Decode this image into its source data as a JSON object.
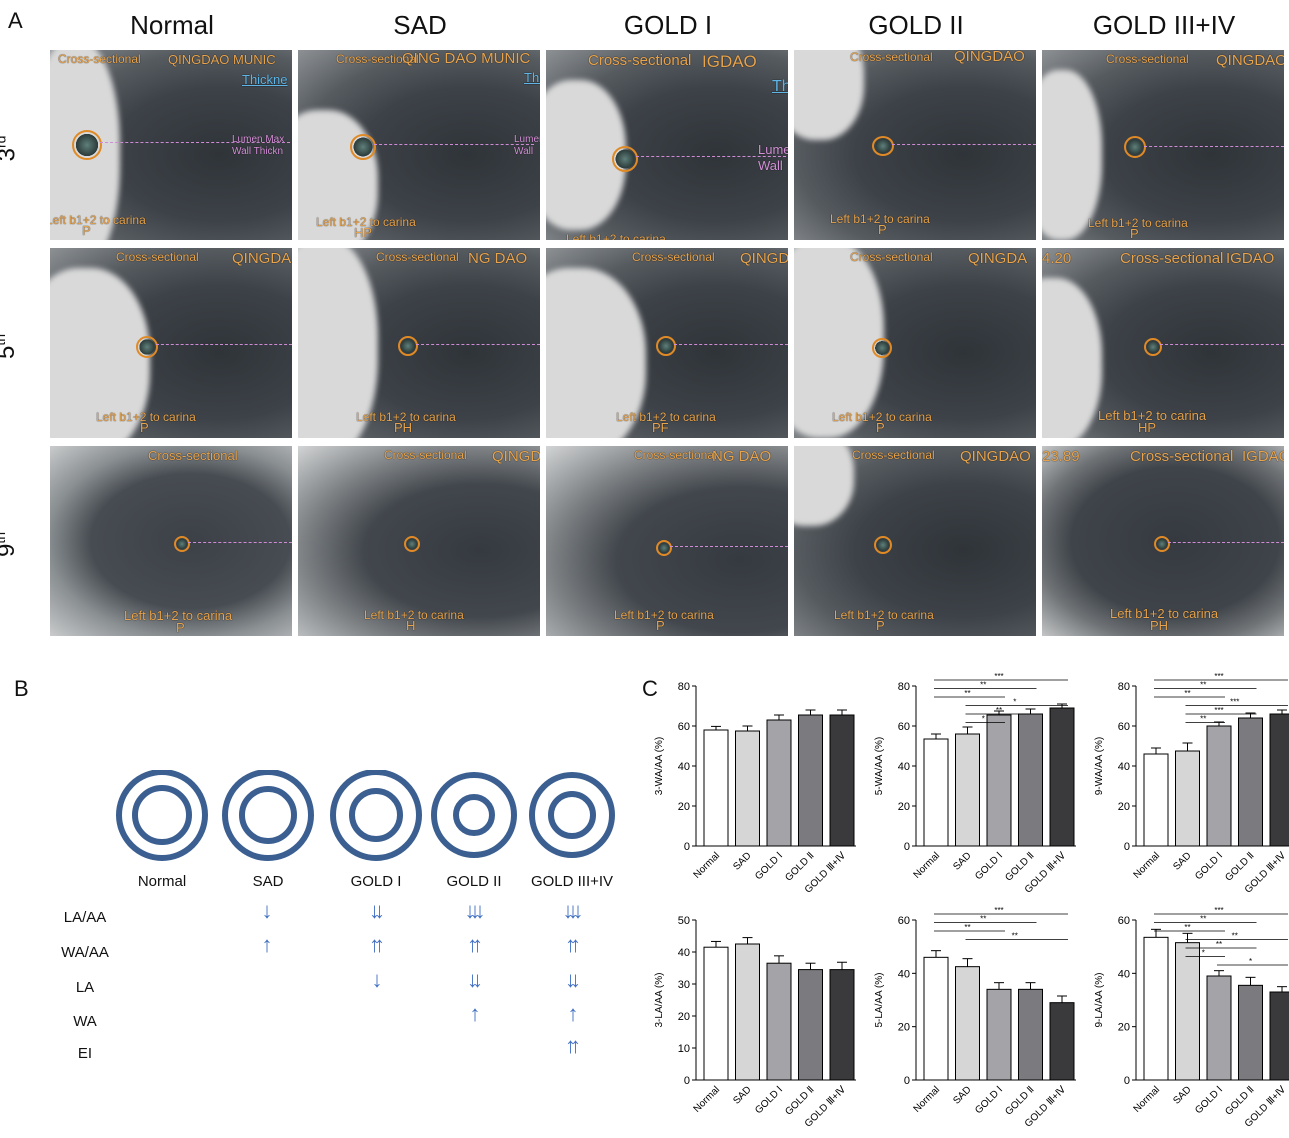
{
  "panel_labels": {
    "a": "A",
    "b": "B",
    "c": "C"
  },
  "columns": [
    "Normal",
    "SAD",
    "GOLD I",
    "GOLD II",
    "GOLD III+IV"
  ],
  "rows": [
    {
      "base": "3",
      "sup": "rd"
    },
    {
      "base": "5",
      "sup": "th"
    },
    {
      "base": "9",
      "sup": "th"
    }
  ],
  "ct_labels": {
    "cross": "Cross-sectional",
    "hosp_full": "QINGDAO MUNIC",
    "hosp_space": "QING DAO MUNIC",
    "hosp_short": "QINGDA",
    "hosp_mid": "QINGDAO",
    "hosp_i": "QINGD",
    "hosp_i0": "QINGD0",
    "hosp_ng": "NG DAO",
    "hosp_dao": "IGDAO",
    "thick": "Thickne",
    "thick2": "Thi",
    "thick3": "Th",
    "lumen": "Lumen Max",
    "wall": "Wall Thickn",
    "lumen2": "Lumen",
    "wall2": "Wall",
    "carina": "Left b1+2 to carina",
    "num1": "4.20",
    "num2": "23.89",
    "orient": [
      "P",
      "HP",
      "P",
      "P",
      "P",
      "P",
      "PH",
      "PF",
      "P",
      "HP",
      "P",
      "H",
      "P",
      "P",
      "PH"
    ]
  },
  "panel_b": {
    "labels": [
      "Normal",
      "SAD",
      "GOLD I",
      "GOLD II",
      "GOLD III+IV"
    ],
    "rows": [
      "LA/AA",
      "WA/AA",
      "LA",
      "WA",
      "EI"
    ],
    "arrow_color": "#4472c4",
    "ring_color": "#3b5f91",
    "matrix": [
      [
        "",
        "↓",
        "↓↓",
        "↓↓↓",
        "↓↓↓"
      ],
      [
        "",
        "↑",
        "↑↑",
        "↑↑",
        "↑↑"
      ],
      [
        "",
        "",
        "↓",
        "↓↓",
        "↓↓"
      ],
      [
        "",
        "",
        "",
        "↑",
        "↑"
      ],
      [
        "",
        "",
        "",
        "",
        "↑↑"
      ]
    ]
  },
  "chart_data": [
    {
      "type": "bar",
      "ylabel": "3-WA/AA (%)",
      "ylim": [
        0,
        80
      ],
      "ticks": [
        0,
        20,
        40,
        60,
        80
      ],
      "categories": [
        "Normal",
        "SAD",
        "GOLD Ⅰ",
        "GOLD Ⅱ",
        "GOLD Ⅲ+Ⅳ"
      ],
      "values": [
        58,
        57.5,
        63,
        65.5,
        65.5
      ],
      "errors": [
        1.8,
        2.5,
        2.5,
        2.5,
        2.5
      ],
      "sig": []
    },
    {
      "type": "bar",
      "ylabel": "5-WA/AA (%)",
      "ylim": [
        0,
        80
      ],
      "ticks": [
        0,
        20,
        40,
        60,
        80
      ],
      "categories": [
        "Normal",
        "SAD",
        "GOLD Ⅰ",
        "GOLD Ⅱ",
        "GOLD Ⅲ+Ⅳ"
      ],
      "values": [
        53.5,
        56,
        65.5,
        66,
        69
      ],
      "errors": [
        2.5,
        3.5,
        2,
        2.5,
        2
      ],
      "sig": [
        [
          "***",
          0,
          4
        ],
        [
          "**",
          0,
          3
        ],
        [
          "**",
          0,
          2
        ],
        [
          "*",
          1,
          4
        ],
        [
          "**",
          1,
          3
        ],
        [
          "*",
          1,
          2
        ]
      ]
    },
    {
      "type": "bar",
      "ylabel": "9-WA/AA (%)",
      "ylim": [
        0,
        80
      ],
      "ticks": [
        0,
        20,
        40,
        60,
        80
      ],
      "categories": [
        "Normal",
        "SAD",
        "GOLD Ⅰ",
        "GOLD Ⅱ",
        "GOLD Ⅲ+Ⅳ"
      ],
      "values": [
        46,
        47.5,
        60,
        64,
        66
      ],
      "errors": [
        3,
        4,
        2,
        2.5,
        2
      ],
      "sig": [
        [
          "***",
          0,
          4
        ],
        [
          "**",
          0,
          3
        ],
        [
          "**",
          0,
          2
        ],
        [
          "***",
          1,
          4
        ],
        [
          "***",
          1,
          3
        ],
        [
          "**",
          1,
          2
        ]
      ]
    },
    {
      "type": "bar",
      "ylabel": "3-LA/AA (%)",
      "ylim": [
        0,
        50
      ],
      "ticks": [
        0,
        10,
        20,
        30,
        40,
        50
      ],
      "categories": [
        "Normal",
        "SAD",
        "GOLD Ⅰ",
        "GOLD Ⅱ",
        "GOLD Ⅲ+Ⅳ"
      ],
      "values": [
        41.5,
        42.5,
        36.5,
        34.5,
        34.5
      ],
      "errors": [
        1.8,
        2,
        2.3,
        2,
        2.3
      ],
      "sig": []
    },
    {
      "type": "bar",
      "ylabel": "5-LA/AA (%)",
      "ylim": [
        0,
        60
      ],
      "ticks": [
        0,
        20,
        40,
        60
      ],
      "categories": [
        "Normal",
        "SAD",
        "GOLD Ⅰ",
        "GOLD Ⅱ",
        "GOLD Ⅲ+Ⅳ"
      ],
      "values": [
        46,
        42.5,
        34,
        34,
        29
      ],
      "errors": [
        2.5,
        3,
        2.5,
        2.5,
        2.5
      ],
      "sig": [
        [
          "***",
          0,
          4
        ],
        [
          "**",
          0,
          3
        ],
        [
          "**",
          0,
          2
        ],
        [
          "**",
          1,
          4
        ]
      ]
    },
    {
      "type": "bar",
      "ylabel": "9-LA/AA (%)",
      "ylim": [
        0,
        60
      ],
      "ticks": [
        0,
        20,
        40,
        60
      ],
      "categories": [
        "Normal",
        "SAD",
        "GOLD Ⅰ",
        "GOLD Ⅱ",
        "GOLD Ⅲ+Ⅳ"
      ],
      "values": [
        53.5,
        51.5,
        39,
        35.5,
        33
      ],
      "errors": [
        3,
        3.5,
        2,
        3,
        2
      ],
      "sig": [
        [
          "***",
          0,
          4
        ],
        [
          "**",
          0,
          3
        ],
        [
          "**",
          0,
          2
        ],
        [
          "**",
          1,
          4
        ],
        [
          "**",
          1,
          3
        ],
        [
          "*",
          1,
          2
        ],
        [
          "*",
          2,
          4
        ]
      ]
    }
  ]
}
